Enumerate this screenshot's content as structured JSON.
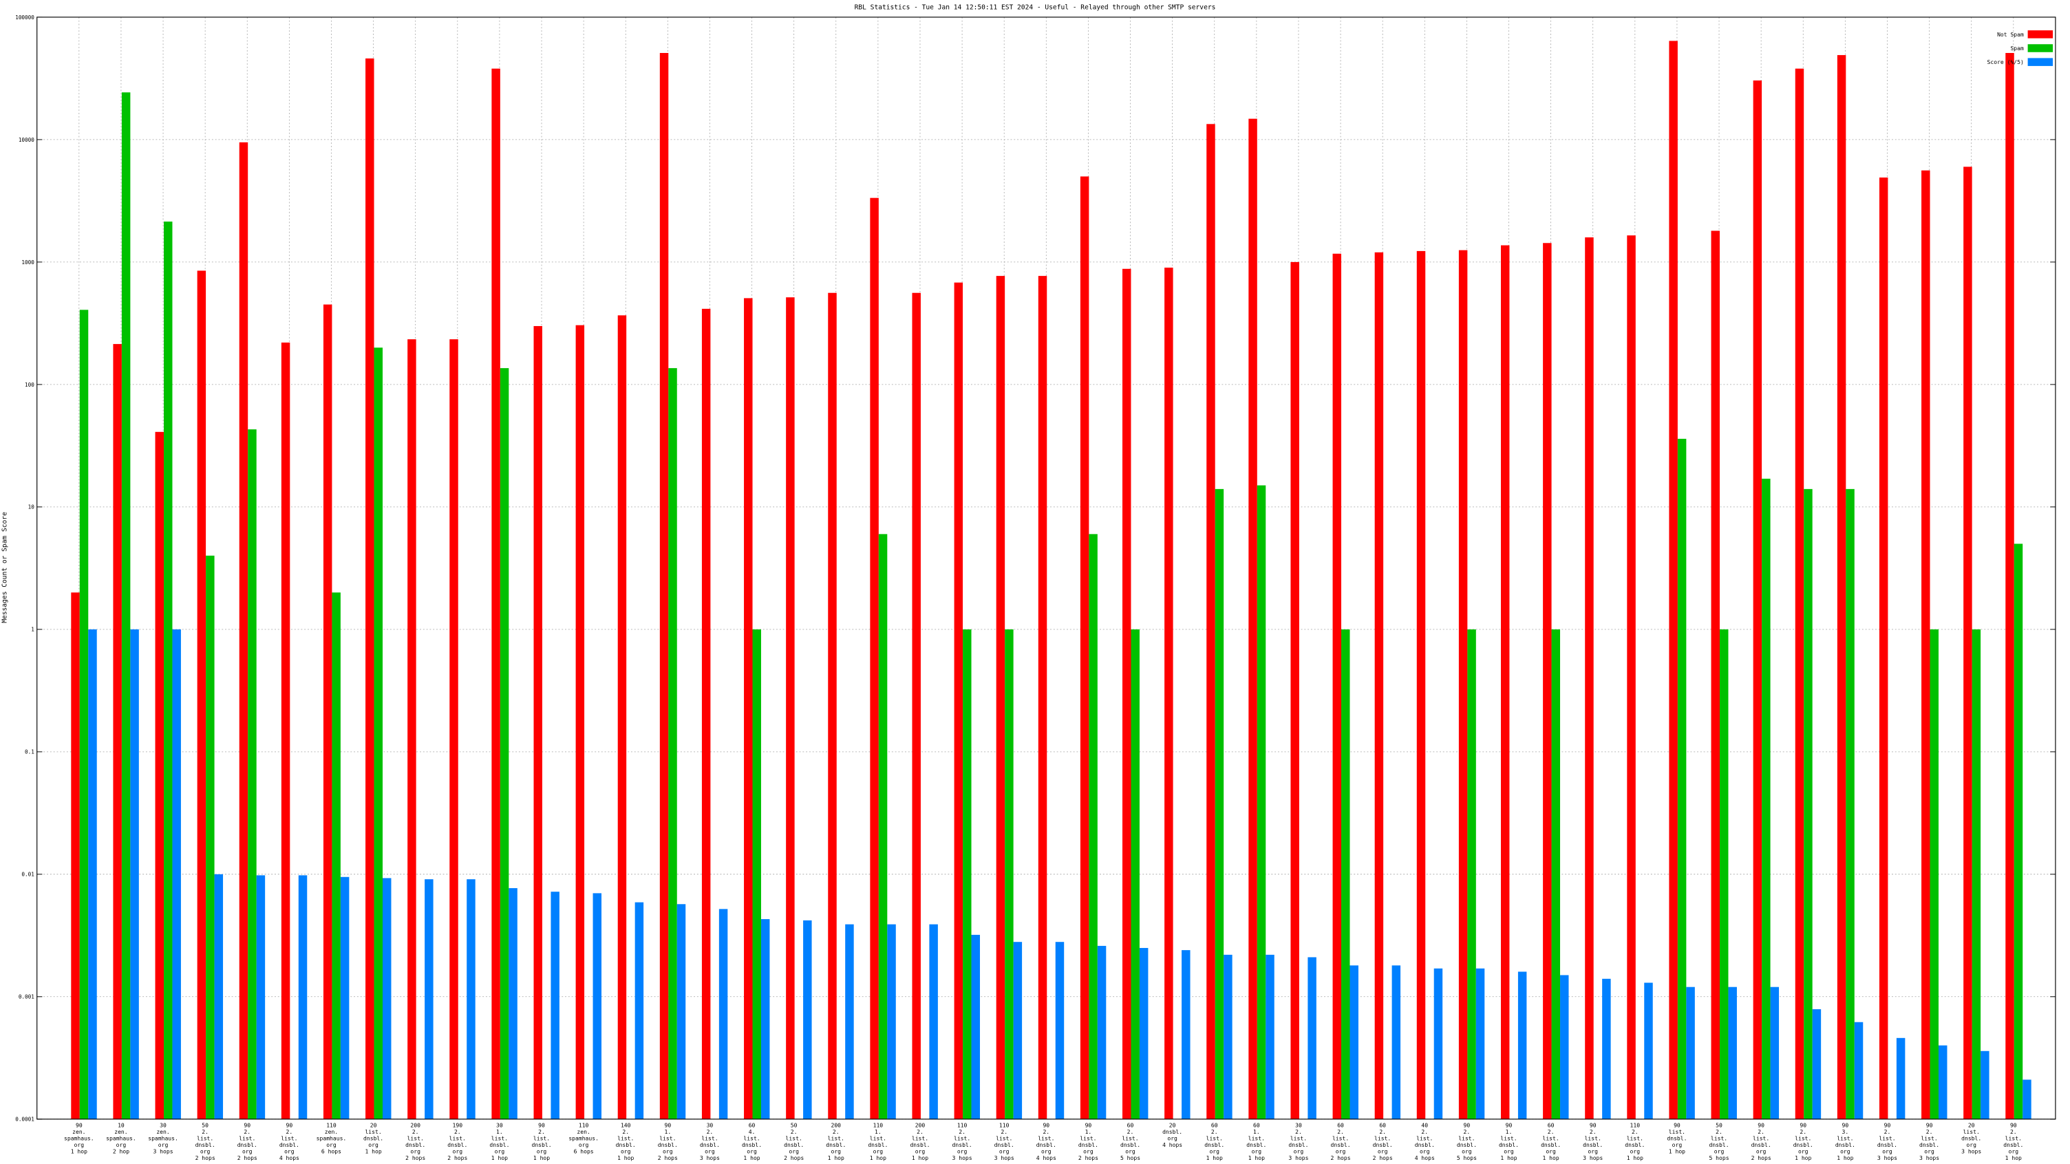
{
  "chart_data": {
    "type": "bar",
    "title": "RBL Statistics - Tue Jan 14 12:50:11 EST 2024 - Useful - Relayed through other SMTP servers",
    "y_label": "Messages Count or Spam Score",
    "log_scale": true,
    "grid": true,
    "legend": "top-right",
    "ylim": [
      0.0001,
      100000
    ],
    "yticks": [
      0.0001,
      0.001,
      0.01,
      0.1,
      1,
      10,
      100,
      1000,
      10000,
      100000
    ],
    "categories": [
      [
        "90",
        "zen.",
        "spamhaus.",
        "org",
        "1 hop"
      ],
      [
        "10",
        "zen.",
        "spamhaus.",
        "org",
        "2 hop"
      ],
      [
        "30",
        "zen.",
        "spamhaus.",
        "org",
        "3 hops"
      ],
      [
        "50",
        "2.",
        "list.",
        "dnsbl.",
        "org",
        "2 hops"
      ],
      [
        "90",
        "2.",
        "list.",
        "dnsbl.",
        "org",
        "2 hops"
      ],
      [
        "90",
        "2.",
        "list.",
        "dnsbl.",
        "org",
        "4 hops"
      ],
      [
        "110",
        "zen.",
        "spamhaus.",
        "org",
        "6 hops"
      ],
      [
        "20",
        "list.",
        "dnsbl.",
        "org",
        "1 hop"
      ],
      [
        "200",
        "2.",
        "list.",
        "dnsbl.",
        "org",
        "2 hops"
      ],
      [
        "190",
        "2.",
        "list.",
        "dnsbl.",
        "org",
        "2 hops"
      ],
      [
        "30",
        "1.",
        "list.",
        "dnsbl.",
        "org",
        "1 hop"
      ],
      [
        "90",
        "2.",
        "list.",
        "dnsbl.",
        "org",
        "1 hop"
      ],
      [
        "110",
        "zen.",
        "spamhaus.",
        "org",
        "6 hops"
      ],
      [
        "140",
        "2.",
        "list.",
        "dnsbl.",
        "org",
        "1 hop"
      ],
      [
        "90",
        "1.",
        "list.",
        "dnsbl.",
        "org",
        "2 hops"
      ],
      [
        "30",
        "2.",
        "list.",
        "dnsbl.",
        "org",
        "3 hops"
      ],
      [
        "60",
        "4.",
        "list.",
        "dnsbl.",
        "org",
        "1 hop"
      ],
      [
        "50",
        "2.",
        "list.",
        "dnsbl.",
        "org",
        "2 hops"
      ],
      [
        "200",
        "2.",
        "list.",
        "dnsbl.",
        "org",
        "1 hop"
      ],
      [
        "110",
        "1.",
        "list.",
        "dnsbl.",
        "org",
        "1 hop"
      ],
      [
        "200",
        "2.",
        "list.",
        "dnsbl.",
        "org",
        "1 hop"
      ],
      [
        "110",
        "2.",
        "list.",
        "dnsbl.",
        "org",
        "3 hops"
      ],
      [
        "110",
        "2.",
        "list.",
        "dnsbl.",
        "org",
        "3 hops"
      ],
      [
        "90",
        "2.",
        "list.",
        "dnsbl.",
        "org",
        "4 hops"
      ],
      [
        "90",
        "1.",
        "list.",
        "dnsbl.",
        "org",
        "2 hops"
      ],
      [
        "60",
        "2.",
        "list.",
        "dnsbl.",
        "org",
        "5 hops"
      ],
      [
        "20",
        "dnsbl.",
        "org",
        "4 hops"
      ],
      [
        "60",
        "2.",
        "list.",
        "dnsbl.",
        "org",
        "1 hop"
      ],
      [
        "60",
        "1.",
        "list.",
        "dnsbl.",
        "org",
        "1 hop"
      ],
      [
        "30",
        "2.",
        "list.",
        "dnsbl.",
        "org",
        "3 hops"
      ],
      [
        "60",
        "2.",
        "list.",
        "dnsbl.",
        "org",
        "2 hops"
      ],
      [
        "60",
        "2.",
        "list.",
        "dnsbl.",
        "org",
        "2 hops"
      ],
      [
        "40",
        "2.",
        "list.",
        "dnsbl.",
        "org",
        "4 hops"
      ],
      [
        "90",
        "2.",
        "list.",
        "dnsbl.",
        "org",
        "5 hops"
      ],
      [
        "90",
        "1.",
        "list.",
        "dnsbl.",
        "org",
        "1 hop"
      ],
      [
        "60",
        "2.",
        "list.",
        "dnsbl.",
        "org",
        "1 hop"
      ],
      [
        "90",
        "2.",
        "list.",
        "dnsbl.",
        "org",
        "3 hops"
      ],
      [
        "110",
        "2.",
        "list.",
        "dnsbl.",
        "org",
        "1 hop"
      ],
      [
        "90",
        "list.",
        "dnsbl.",
        "org",
        "1 hop"
      ],
      [
        "50",
        "2.",
        "list.",
        "dnsbl.",
        "org",
        "5 hops"
      ],
      [
        "90",
        "2.",
        "list.",
        "dnsbl.",
        "org",
        "2 hops"
      ],
      [
        "90",
        "2.",
        "list.",
        "dnsbl.",
        "org",
        "1 hop"
      ],
      [
        "90",
        "3.",
        "list.",
        "dnsbl.",
        "org",
        "1 hop"
      ],
      [
        "90",
        "2.",
        "list.",
        "dnsbl.",
        "org",
        "3 hops"
      ],
      [
        "90",
        "2.",
        "list.",
        "dnsbl.",
        "org",
        "3 hops"
      ],
      [
        "20",
        "list.",
        "dnsbl.",
        "org",
        "3 hops"
      ],
      [
        "90",
        "2.",
        "list.",
        "dnsbl.",
        "org",
        "1 hop"
      ]
    ],
    "series": [
      {
        "name": "Not Spam",
        "color": "#ff0000",
        "values": [
          2,
          214,
          41,
          850,
          9500,
          220,
          450,
          46000,
          234,
          234,
          38000,
          300,
          305,
          367,
          51000,
          415,
          507,
          515,
          560,
          3340,
          560,
          680,
          770,
          770,
          5000,
          880,
          900,
          13400,
          14800,
          1000,
          1170,
          1200,
          1230,
          1250,
          1370,
          1430,
          1590,
          1650,
          64000,
          1800,
          30400,
          38000,
          49000,
          4900,
          5600,
          6000,
          51000
        ]
      },
      {
        "name": "Spam",
        "color": "#00c000",
        "values": [
          407,
          24300,
          2140,
          4,
          43,
          null,
          2,
          200,
          null,
          null,
          136,
          null,
          null,
          null,
          136,
          null,
          1,
          null,
          null,
          6,
          null,
          1,
          1,
          null,
          6,
          1,
          null,
          14,
          15,
          null,
          1,
          null,
          null,
          1,
          null,
          1,
          null,
          null,
          36,
          1,
          17,
          14,
          14,
          null,
          1,
          1,
          5
        ]
      },
      {
        "name": "Score (%/5)",
        "color": "#0080ff",
        "values": [
          1,
          1,
          1,
          0.01,
          0.0098,
          0.0098,
          0.0095,
          0.0093,
          0.0091,
          0.0091,
          0.0077,
          0.0072,
          0.007,
          0.0059,
          0.0057,
          0.0052,
          0.0043,
          0.0042,
          0.0039,
          0.0039,
          0.0039,
          0.0032,
          0.0028,
          0.0028,
          0.0026,
          0.0025,
          0.0024,
          0.0022,
          0.0022,
          0.0021,
          0.0018,
          0.0018,
          0.0017,
          0.0017,
          0.0016,
          0.0015,
          0.0014,
          0.0013,
          0.0012,
          0.0012,
          0.0012,
          0.00079,
          0.00062,
          0.00046,
          0.0004,
          0.00036,
          0.00021
        ]
      }
    ]
  }
}
